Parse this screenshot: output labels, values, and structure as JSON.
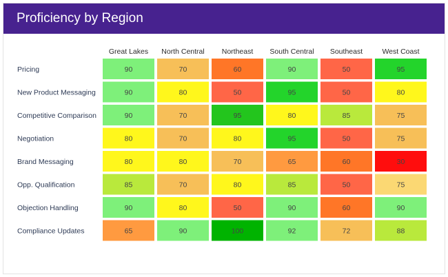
{
  "header": {
    "title": "Proficiency by Region"
  },
  "chart_data": {
    "type": "heatmap",
    "title": "Proficiency by Region",
    "columns": [
      "Great Lakes",
      "North Central",
      "Northeast",
      "South Central",
      "Southeast",
      "West Coast"
    ],
    "rows": [
      "Pricing",
      "New Product Messaging",
      "Competitive Comparison",
      "Negotiation",
      "Brand Messaging",
      "Opp. Qualification",
      "Objection Handling",
      "Compliance Updates"
    ],
    "values": [
      [
        90,
        70,
        60,
        90,
        50,
        95
      ],
      [
        90,
        80,
        50,
        95,
        50,
        80
      ],
      [
        90,
        70,
        95,
        80,
        85,
        75
      ],
      [
        80,
        70,
        80,
        95,
        50,
        75
      ],
      [
        80,
        80,
        70,
        65,
        60,
        30
      ],
      [
        85,
        70,
        80,
        85,
        50,
        75
      ],
      [
        90,
        80,
        50,
        90,
        60,
        90
      ],
      [
        65,
        90,
        100,
        92,
        72,
        88
      ]
    ],
    "colors": [
      [
        "#7ef07a",
        "#f7bf58",
        "#ff7627",
        "#7ef07a",
        "#ff6647",
        "#23d42b"
      ],
      [
        "#7ef07a",
        "#fff71c",
        "#ff6647",
        "#23d42b",
        "#ff6647",
        "#fff71c"
      ],
      [
        "#7ef07a",
        "#f7bf58",
        "#23c51d",
        "#fff71c",
        "#b9e93c",
        "#f7bf58"
      ],
      [
        "#fff71c",
        "#f7bf58",
        "#fff71c",
        "#23d42b",
        "#ff6647",
        "#f7bf58"
      ],
      [
        "#fff71c",
        "#fff71c",
        "#f7bf58",
        "#ff9a40",
        "#ff7627",
        "#ff0d0d"
      ],
      [
        "#b9e93c",
        "#f7bf58",
        "#fff71c",
        "#b9e93c",
        "#ff6647",
        "#fbd873"
      ],
      [
        "#7ef07a",
        "#fff71c",
        "#ff6647",
        "#7ef07a",
        "#ff7627",
        "#7ef07a"
      ],
      [
        "#ff9a40",
        "#7ef07a",
        "#00b300",
        "#7ef07a",
        "#f7bf58",
        "#b9e93c"
      ]
    ],
    "grid": false,
    "legend": "none"
  }
}
